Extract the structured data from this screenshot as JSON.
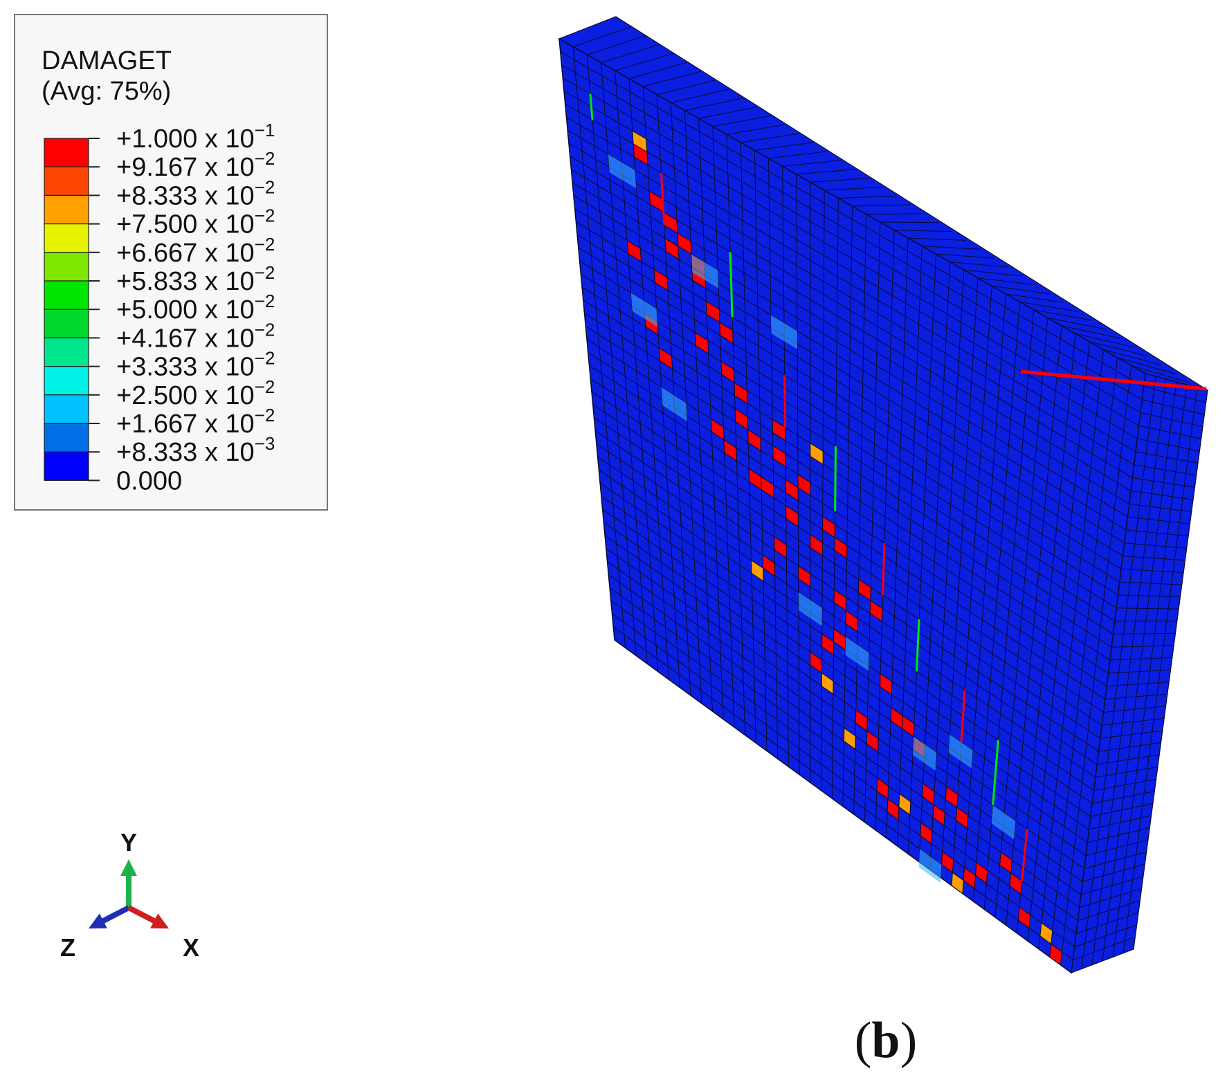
{
  "legend": {
    "variable": "DAMAGET",
    "average": "(Avg: 75%)",
    "levels": [
      {
        "mantissa": "+1.000",
        "exp": "−1",
        "color": "#ff0000"
      },
      {
        "mantissa": "+9.167",
        "exp": "−2",
        "color": "#ff4600"
      },
      {
        "mantissa": "+8.333",
        "exp": "−2",
        "color": "#ffa000"
      },
      {
        "mantissa": "+7.500",
        "exp": "−2",
        "color": "#e6f200"
      },
      {
        "mantissa": "+6.667",
        "exp": "−2",
        "color": "#7fe600"
      },
      {
        "mantissa": "+5.833",
        "exp": "−2",
        "color": "#00e600"
      },
      {
        "mantissa": "+5.000",
        "exp": "−2",
        "color": "#00d92b"
      },
      {
        "mantissa": "+4.167",
        "exp": "−2",
        "color": "#00e68c"
      },
      {
        "mantissa": "+3.333",
        "exp": "−2",
        "color": "#00f2e6"
      },
      {
        "mantissa": "+2.500",
        "exp": "−2",
        "color": "#00c2ff"
      },
      {
        "mantissa": "+1.667",
        "exp": "−2",
        "color": "#006fe6"
      },
      {
        "mantissa": "+8.333",
        "exp": "−3",
        "color": "#0000ff"
      },
      {
        "mantissa": "0.000",
        "exp": "",
        "color": ""
      }
    ],
    "times_label": "x 10"
  },
  "triad": {
    "y_label": "Y",
    "z_label": "Z",
    "x_label": "X",
    "colors": {
      "y": "#1db34a",
      "z": "#1f2fb5",
      "x": "#cc1f1f"
    }
  },
  "model": {
    "base_color": "#0b1fe0",
    "mesh_line_color": "#0a0a30",
    "damaged_color": "#ff0000",
    "partial_color": "#ffa000"
  },
  "caption": {
    "open": "(",
    "letter": "b",
    "close": ")"
  }
}
